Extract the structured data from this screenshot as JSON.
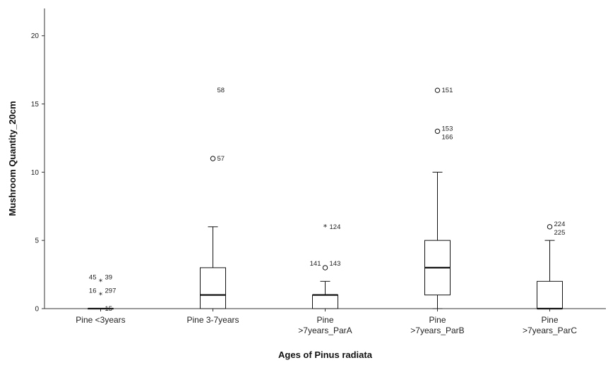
{
  "chart_data": {
    "type": "boxplot",
    "xlabel": "Ages of Pinus radiata",
    "ylabel": "Mushroom Quantity_20cm",
    "ylim": [
      0,
      22
    ],
    "yticks": [
      0,
      5,
      10,
      15,
      20
    ],
    "grid": false,
    "categories": [
      {
        "lines": [
          "Pine <3years"
        ]
      },
      {
        "lines": [
          "Pine 3-7years"
        ]
      },
      {
        "lines": [
          "Pine",
          ">7years_ParA"
        ]
      },
      {
        "lines": [
          "Pine",
          ">7years_ParB"
        ]
      },
      {
        "lines": [
          "Pine",
          ">7years_ParC"
        ]
      }
    ],
    "boxes": [
      {
        "min": 0,
        "q1": 0,
        "median": 0,
        "q3": 0,
        "max": 0,
        "outliers": [
          {
            "y": 2,
            "marker": "star",
            "labels": [
              "45",
              "39"
            ]
          },
          {
            "y": 1,
            "marker": "star",
            "labels": [
              "16",
              "297"
            ]
          },
          {
            "y": 0,
            "marker": "none",
            "labels": [
              "15"
            ]
          }
        ]
      },
      {
        "min": 0,
        "q1": 0,
        "median": 1,
        "q3": 3,
        "max": 6,
        "outliers": [
          {
            "y": 16,
            "marker": "none",
            "labels": [
              "58"
            ]
          },
          {
            "y": 11,
            "marker": "circle",
            "labels": [
              "57"
            ]
          }
        ]
      },
      {
        "min": 0,
        "q1": 0,
        "median": 1,
        "q3": 1,
        "max": 2,
        "outliers": [
          {
            "y": 6,
            "marker": "star",
            "labels": [
              "124"
            ]
          },
          {
            "y": 3,
            "marker": "circle",
            "labels": [
              "141",
              "143"
            ]
          }
        ]
      },
      {
        "min": 0,
        "q1": 1,
        "median": 3,
        "q3": 5,
        "max": 10,
        "outliers": [
          {
            "y": 16,
            "marker": "circle",
            "labels": [
              "151"
            ]
          },
          {
            "y": 13,
            "marker": "circle",
            "labels": [
              "153",
              "166"
            ]
          }
        ]
      },
      {
        "min": 0,
        "q1": 0,
        "median": 0,
        "q3": 2,
        "max": 5,
        "outliers": [
          {
            "y": 6,
            "marker": "circle",
            "labels": [
              "224",
              "225"
            ]
          }
        ]
      }
    ]
  }
}
